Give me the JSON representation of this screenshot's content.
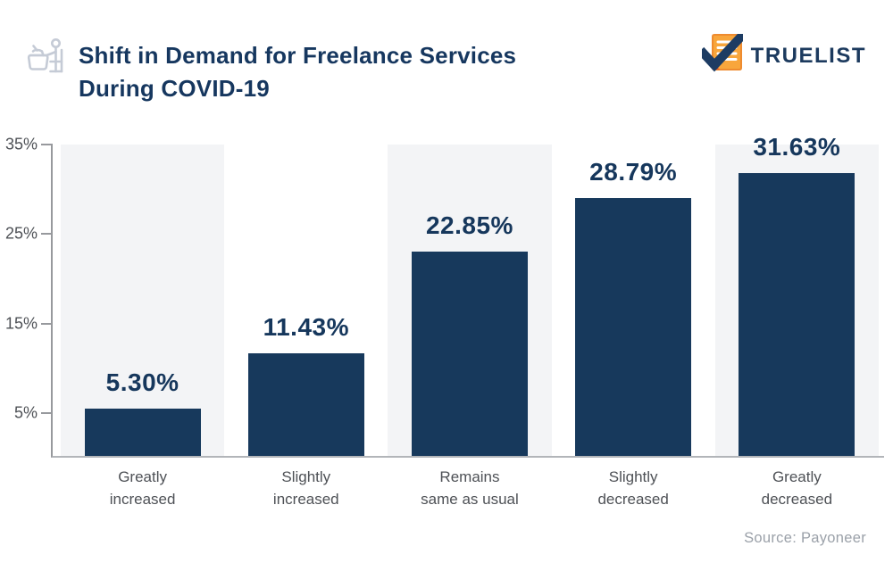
{
  "header": {
    "title_lines": [
      "Shift in Demand for Freelance Services",
      "During COVID-19"
    ],
    "logo_text": "TRUELIST"
  },
  "chart_data": {
    "type": "bar",
    "title": "Shift in Demand for Freelance Services During COVID-19",
    "categories": [
      "Greatly\nincreased",
      "Slightly\nincreased",
      "Remains\nsame as usual",
      "Slightly\ndecreased",
      "Greatly\ndecreased"
    ],
    "values": [
      5.3,
      11.43,
      22.85,
      28.79,
      31.63
    ],
    "value_labels": [
      "5.30%",
      "11.43%",
      "22.85%",
      "28.79%",
      "31.63%"
    ],
    "xlabel": "",
    "ylabel": "",
    "ylim": [
      0,
      35
    ],
    "yticks": [
      35,
      25,
      15,
      5
    ],
    "ytick_labels": [
      "35%",
      "25%",
      "15%",
      "5%"
    ],
    "grid": false,
    "legend": false,
    "bar_color": "#17395C",
    "striped_column_color": "#F3F4F6",
    "striped_columns": [
      0,
      2,
      4
    ],
    "value_label_color": "#16375C",
    "axis_color": "#97999D"
  },
  "footer": {
    "source": "Source: Payoneer"
  }
}
